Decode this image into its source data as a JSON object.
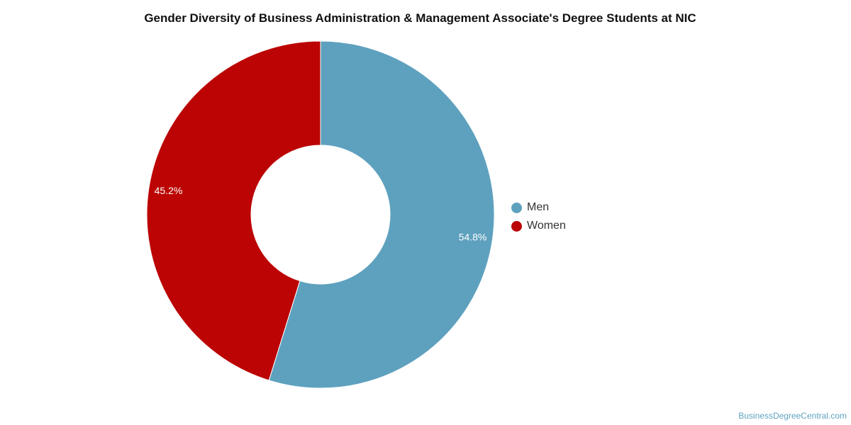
{
  "chart_data": {
    "type": "pie",
    "title": "Gender Diversity of Business Administration & Management Associate's Degree Students at NIC",
    "slices": [
      {
        "name": "Men",
        "value": 54.8,
        "label": "54.8%",
        "color": "#5ea1be"
      },
      {
        "name": "Women",
        "value": 45.2,
        "label": "45.2%",
        "color": "#bb0403"
      }
    ],
    "donut": true,
    "legend_position": "right"
  },
  "watermark": "BusinessDegreeCentral.com"
}
